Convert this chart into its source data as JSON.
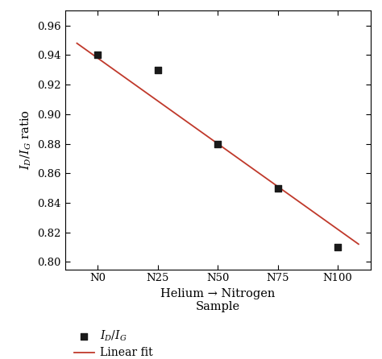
{
  "categories": [
    "N0",
    "N25",
    "N50",
    "N75",
    "N100"
  ],
  "x_positions": [
    0,
    1,
    2,
    3,
    4
  ],
  "y_values": [
    0.94,
    0.93,
    0.88,
    0.85,
    0.81
  ],
  "fit_x_start": -0.35,
  "fit_x_end": 4.35,
  "fit_y_start": 0.948,
  "fit_y_end": 0.812,
  "ylim": [
    0.795,
    0.97
  ],
  "yticks": [
    0.8,
    0.82,
    0.84,
    0.86,
    0.88,
    0.9,
    0.92,
    0.94,
    0.96
  ],
  "xlim": [
    -0.55,
    4.55
  ],
  "xlabel_line1": "Helium → Nitrogen",
  "xlabel_line2": "Sample",
  "ylabel": "$I_D$/$I_G$ ratio",
  "scatter_color": "#1a1a1a",
  "scatter_size": 40,
  "scatter_marker": "s",
  "fit_color": "#c0392b",
  "fit_linewidth": 1.3,
  "legend_label_scatter": "$I_D$/$I_G$",
  "legend_label_fit": "Linear fit",
  "background_color": "#ffffff",
  "tick_fontsize": 9.5,
  "label_fontsize": 10.5,
  "legend_fontsize": 10
}
